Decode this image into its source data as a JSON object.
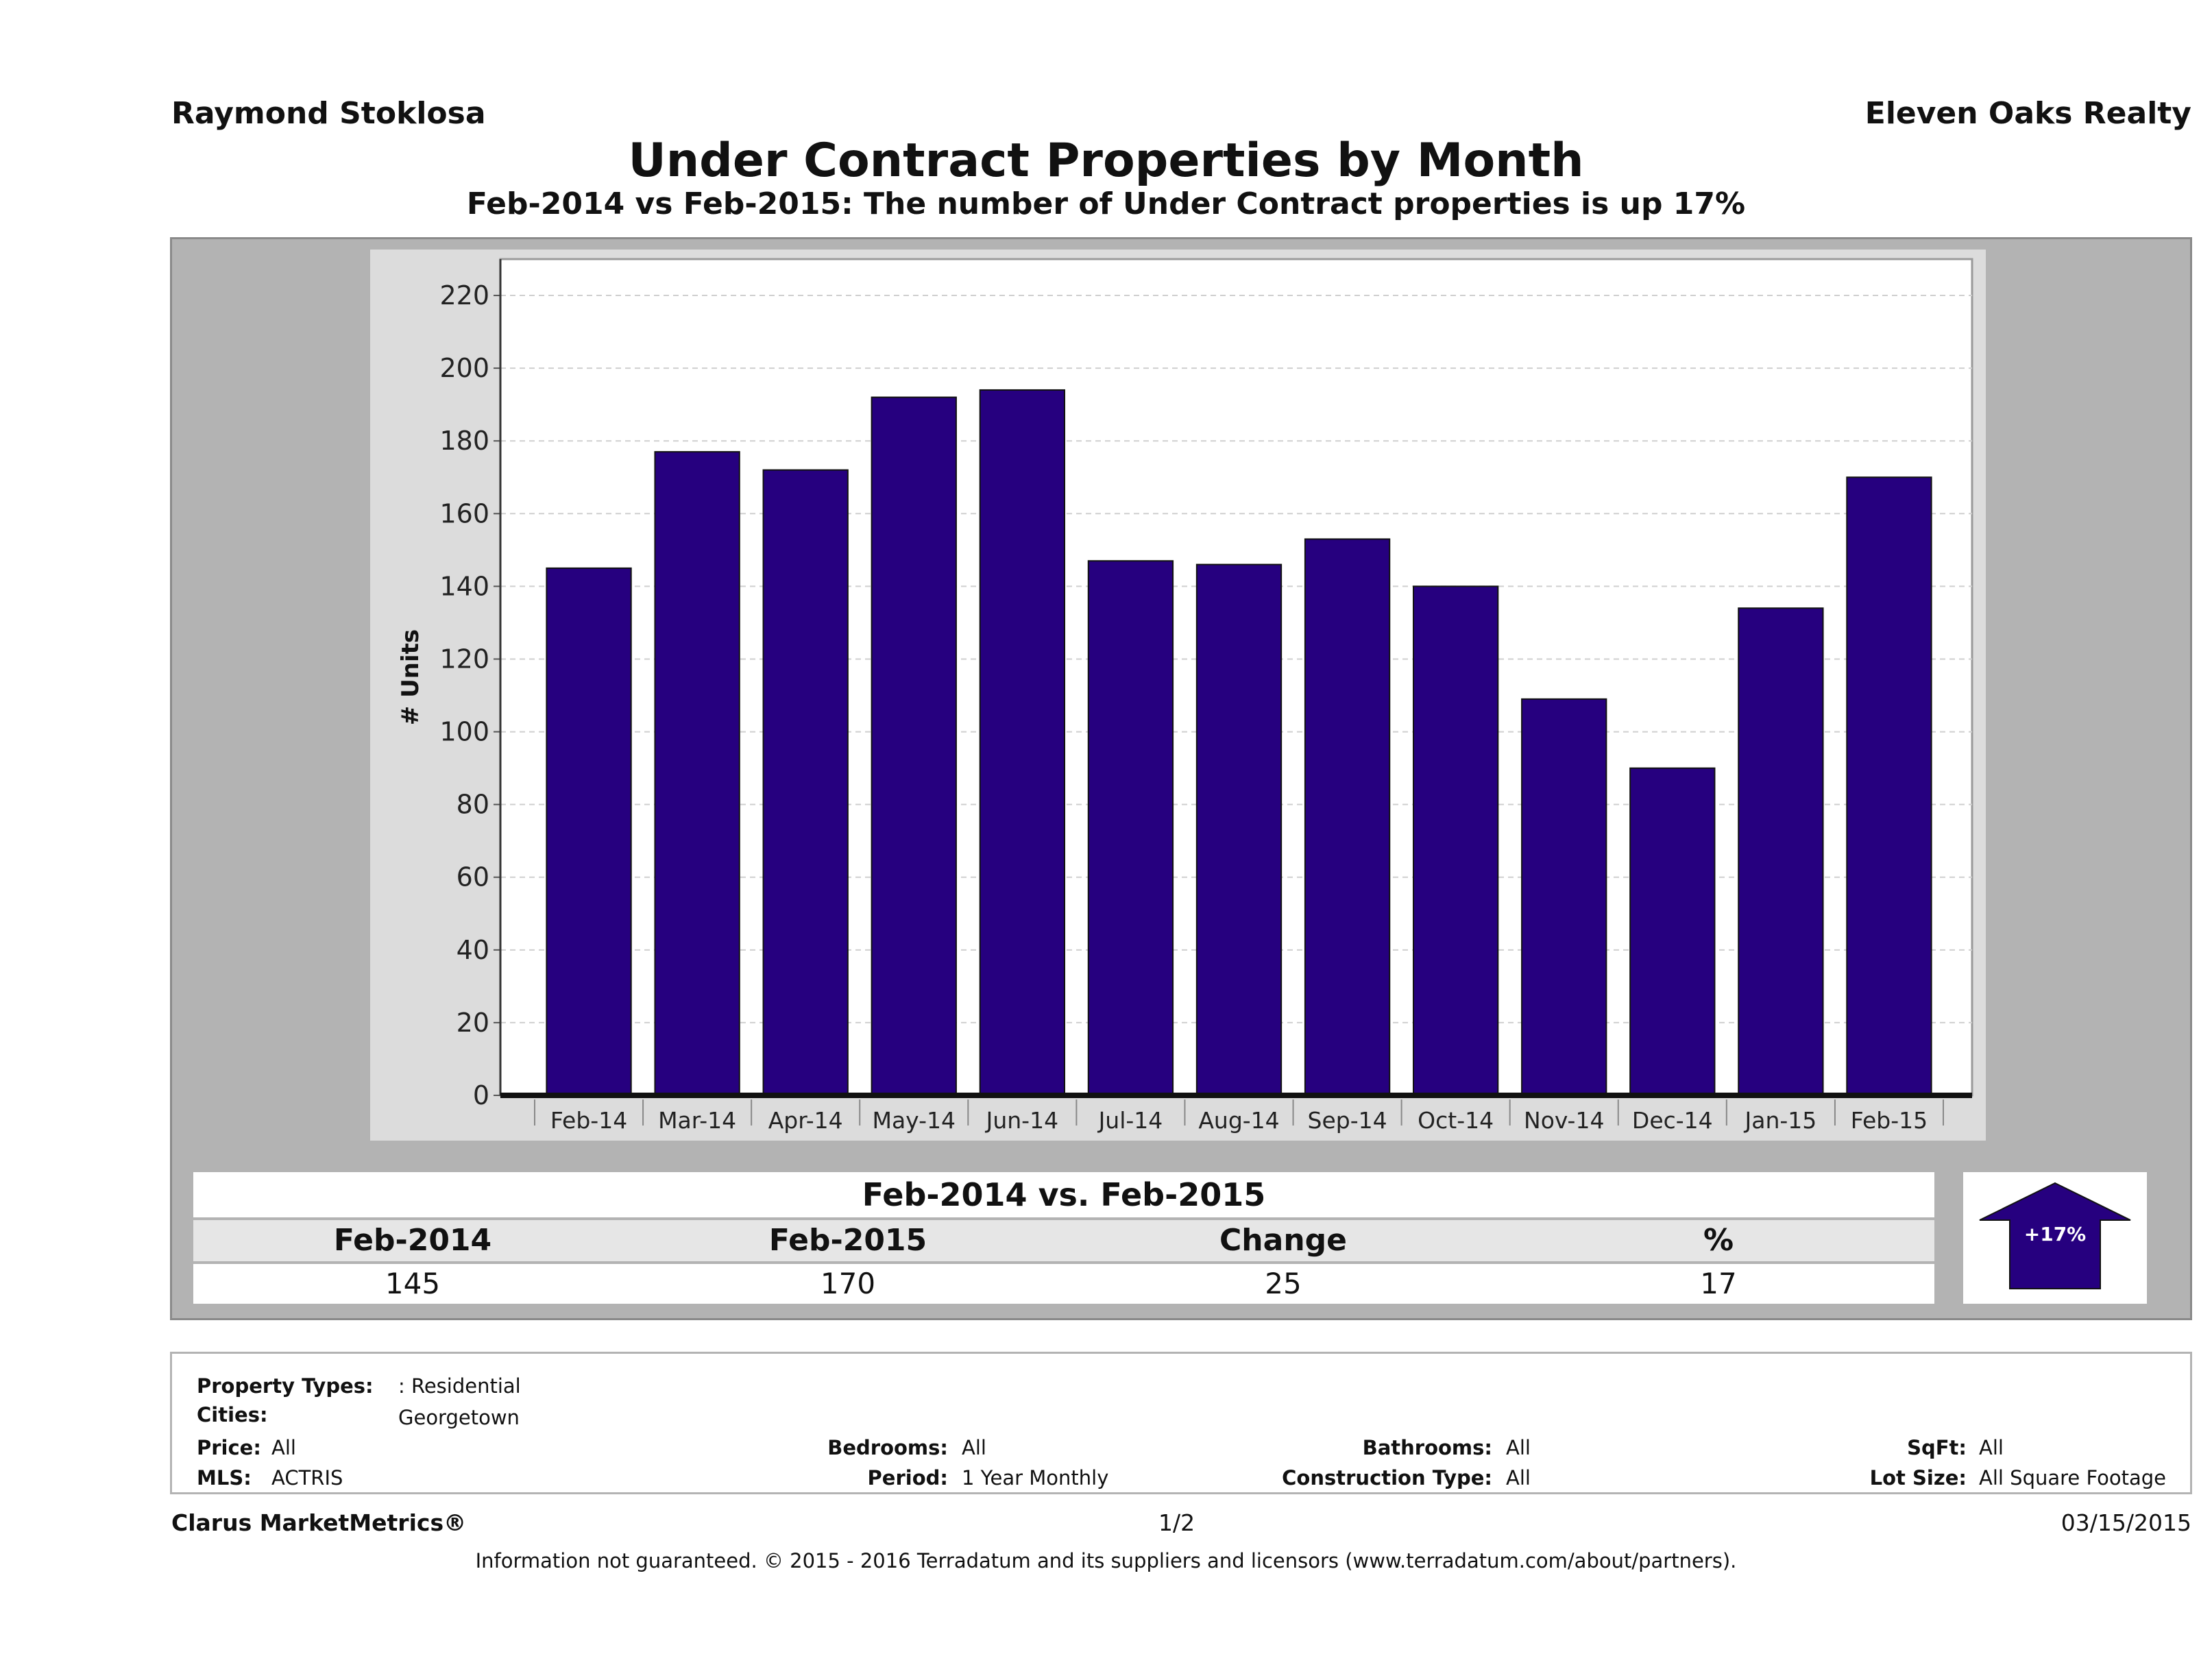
{
  "header": {
    "agent": "Raymond Stoklosa",
    "company": "Eleven Oaks Realty",
    "title": "Under Contract Properties by Month",
    "subtitle": "Feb-2014 vs Feb-2015: The number of Under Contract  properties is up 17%"
  },
  "chart_data": {
    "type": "bar",
    "title": "Under Contract Properties by Month",
    "ylabel": "# Units",
    "xlabel": "",
    "categories": [
      "Feb-14",
      "Mar-14",
      "Apr-14",
      "May-14",
      "Jun-14",
      "Jul-14",
      "Aug-14",
      "Sep-14",
      "Oct-14",
      "Nov-14",
      "Dec-14",
      "Jan-15",
      "Feb-15"
    ],
    "values": [
      145,
      177,
      172,
      192,
      194,
      147,
      146,
      153,
      140,
      109,
      90,
      134,
      170
    ],
    "ylim": [
      0,
      230
    ],
    "yticks": [
      0,
      20,
      40,
      60,
      80,
      100,
      120,
      140,
      160,
      180,
      200,
      220
    ],
    "grid": true,
    "bar_color": "#26007f"
  },
  "comparison": {
    "title": "Feb-2014 vs. Feb-2015",
    "headers": [
      "Feb-2014",
      "Feb-2015",
      "Change",
      "%"
    ],
    "values": [
      "145",
      "170",
      "25",
      "17"
    ],
    "badge": "+17%",
    "badge_color": "#26007f"
  },
  "criteria": {
    "property_types_label": "Property Types:",
    "property_types_value": ": Residential",
    "cities_label": "Cities:",
    "cities_value": "Georgetown",
    "price_label": "Price:",
    "price_value": "All",
    "mls_label": "MLS:",
    "mls_value": "ACTRIS",
    "bedrooms_label": "Bedrooms:",
    "bedrooms_value": "All",
    "period_label": "Period:",
    "period_value": "1 Year Monthly",
    "bathrooms_label": "Bathrooms:",
    "bathrooms_value": "All",
    "construction_label": "Construction Type:",
    "construction_value": "All",
    "sqft_label": "SqFt:",
    "sqft_value": "All",
    "lotsize_label": "Lot Size:",
    "lotsize_value": "All Square Footage"
  },
  "footer": {
    "brand": "Clarus MarketMetrics®",
    "page": "1/2",
    "date": "03/15/2015",
    "note": "Information not guaranteed. © 2015 - 2016 Terradatum and its suppliers and licensors (www.terradatum.com/about/partners)."
  }
}
